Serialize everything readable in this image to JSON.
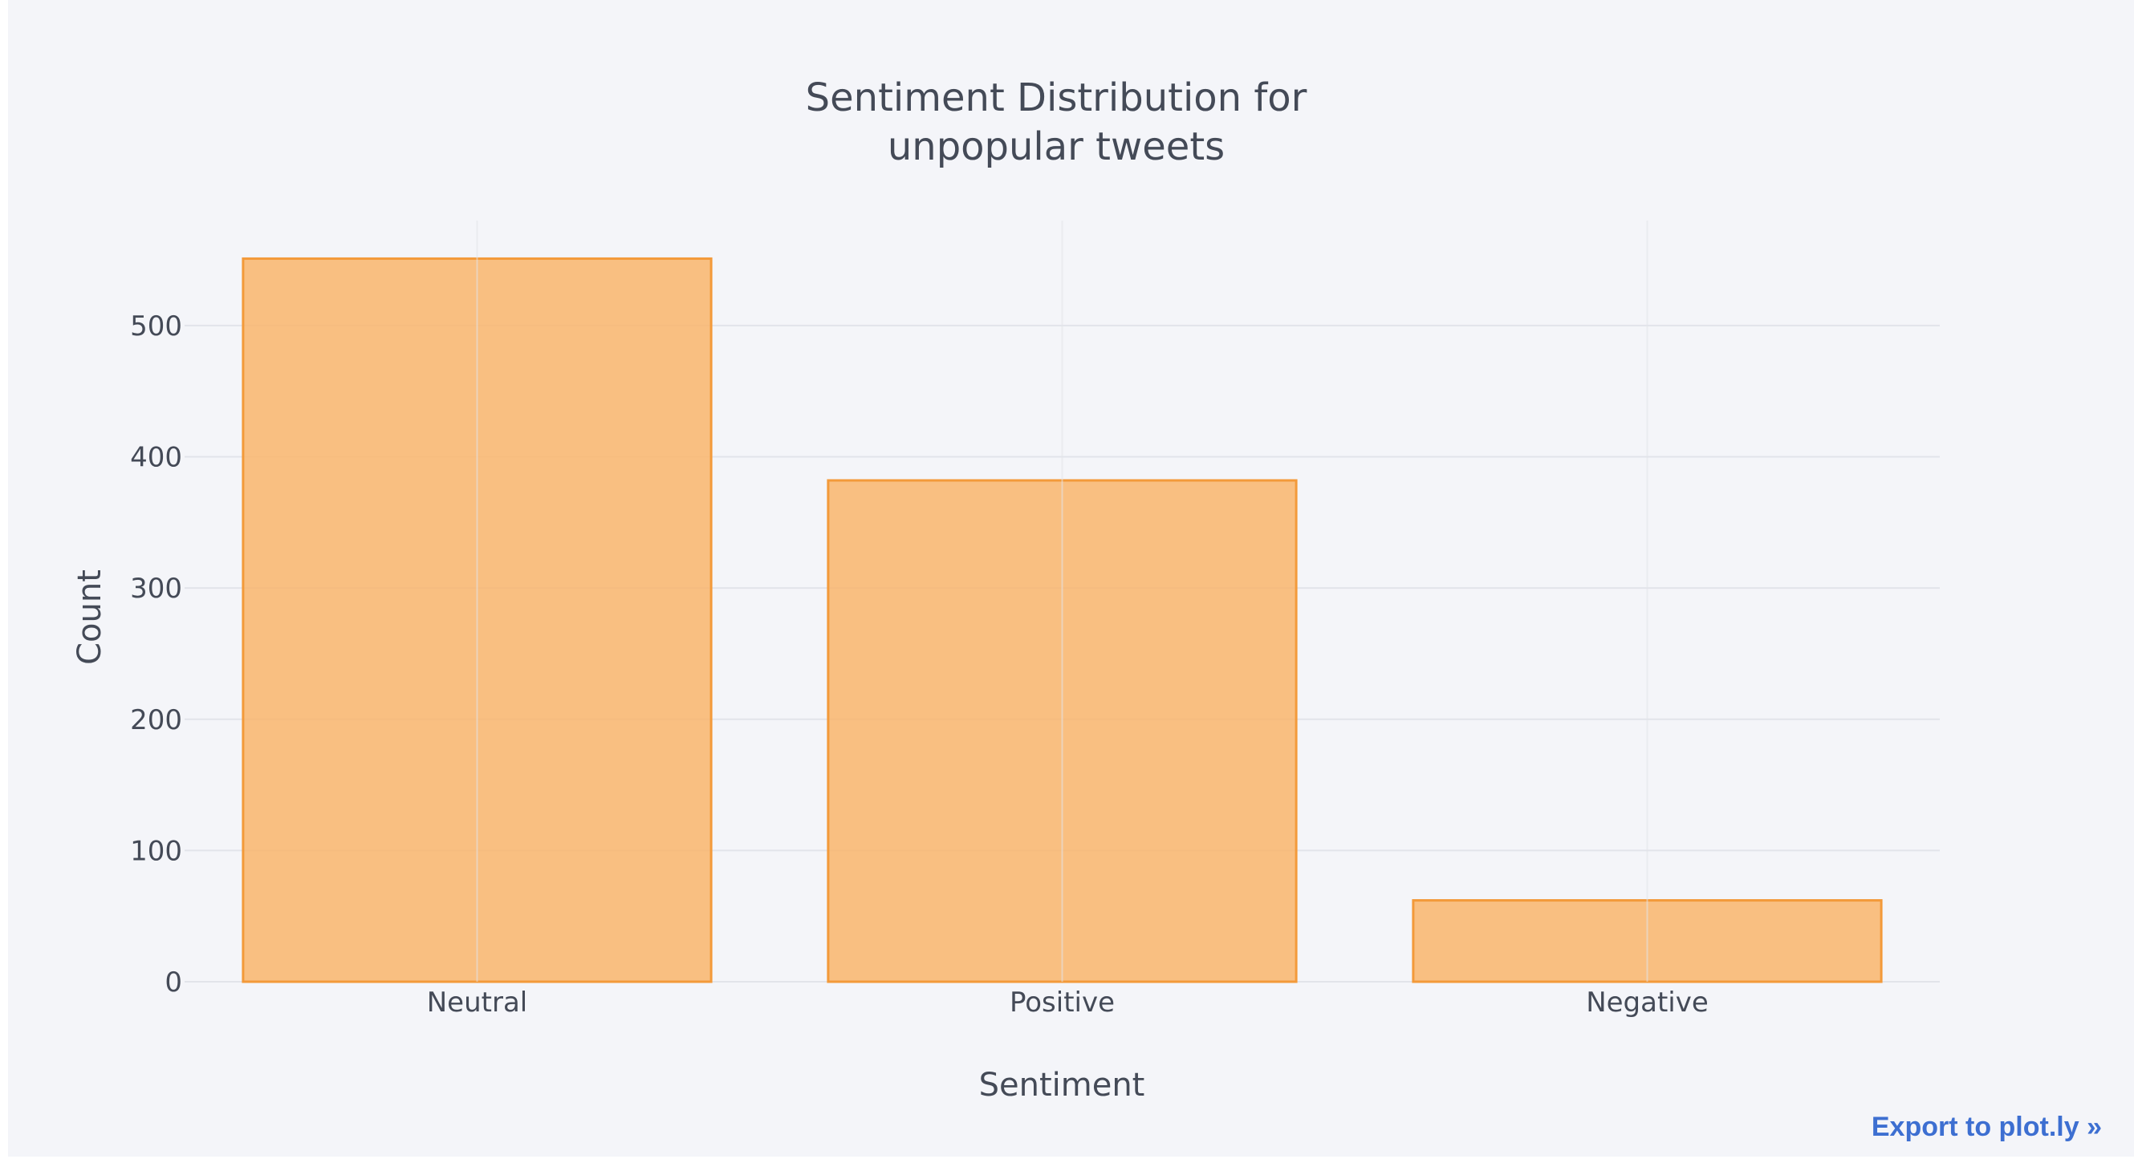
{
  "chart_data": {
    "type": "bar",
    "title": "Sentiment Distribution for\nunpopular tweets",
    "xlabel": "Sentiment",
    "ylabel": "Count",
    "categories": [
      "Neutral",
      "Positive",
      "Negative"
    ],
    "values": [
      551,
      382,
      62
    ],
    "ylim": [
      0,
      580
    ],
    "yticks": [
      0,
      100,
      200,
      300,
      400,
      500
    ],
    "grid": true,
    "legend": "none",
    "bar_fill": "#f9b56c",
    "bar_fill_opacity": 0.85,
    "bar_stroke": "#f39a3a",
    "plot_background": "#f4f5f9",
    "grid_color": "#e2e4ea"
  },
  "footer": {
    "export_label": "Export to plot.ly »"
  }
}
